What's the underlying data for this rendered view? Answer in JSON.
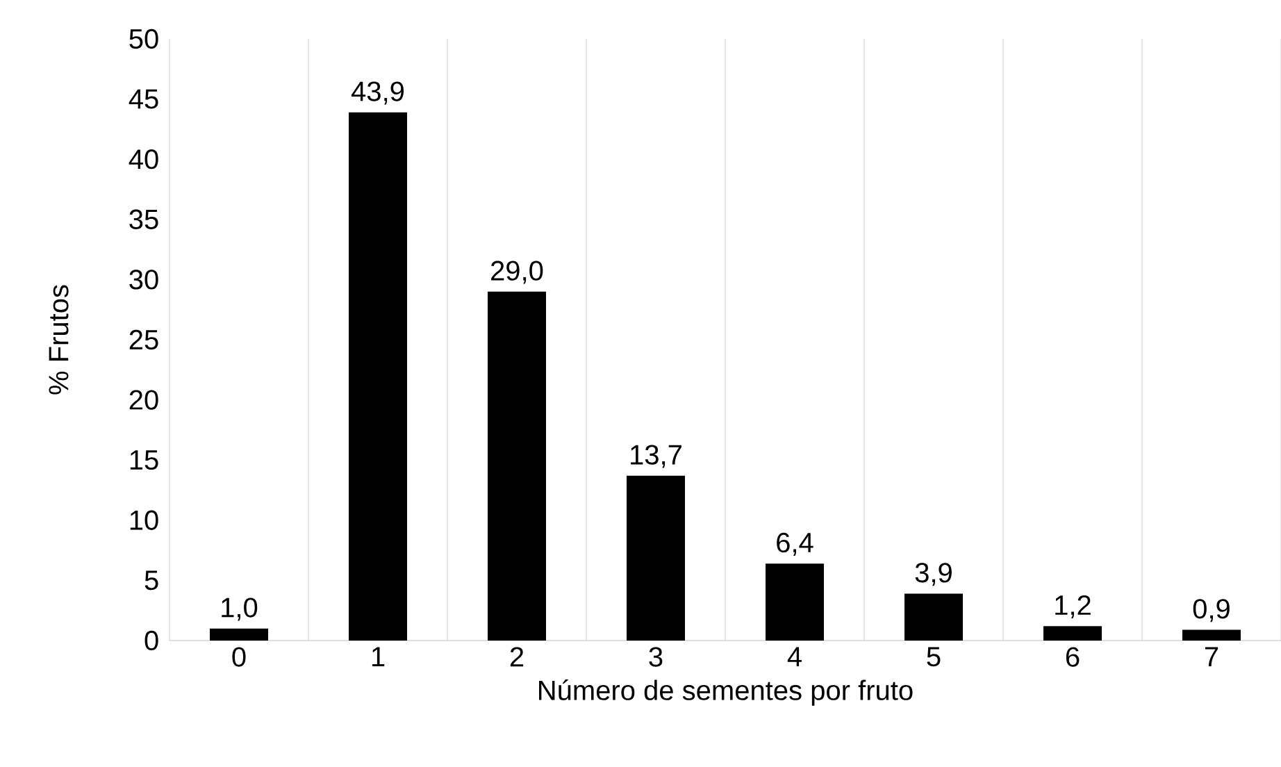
{
  "chart_data": {
    "type": "bar",
    "xlabel": "Número de sementes por fruto",
    "ylabel": "% Frutos",
    "categories": [
      "0",
      "1",
      "2",
      "3",
      "4",
      "5",
      "6",
      "7"
    ],
    "values": [
      1.0,
      43.9,
      29.0,
      13.7,
      6.4,
      3.9,
      1.2,
      0.9
    ],
    "value_labels": [
      "1,0",
      "43,9",
      "29,0",
      "13,7",
      "6,4",
      "3,9",
      "1,2",
      "0,9"
    ],
    "color": "#000000",
    "ylim": [
      0,
      50
    ],
    "yticks": [
      0,
      5,
      10,
      15,
      20,
      25,
      30,
      35,
      40,
      45,
      50
    ],
    "grid": "x"
  }
}
